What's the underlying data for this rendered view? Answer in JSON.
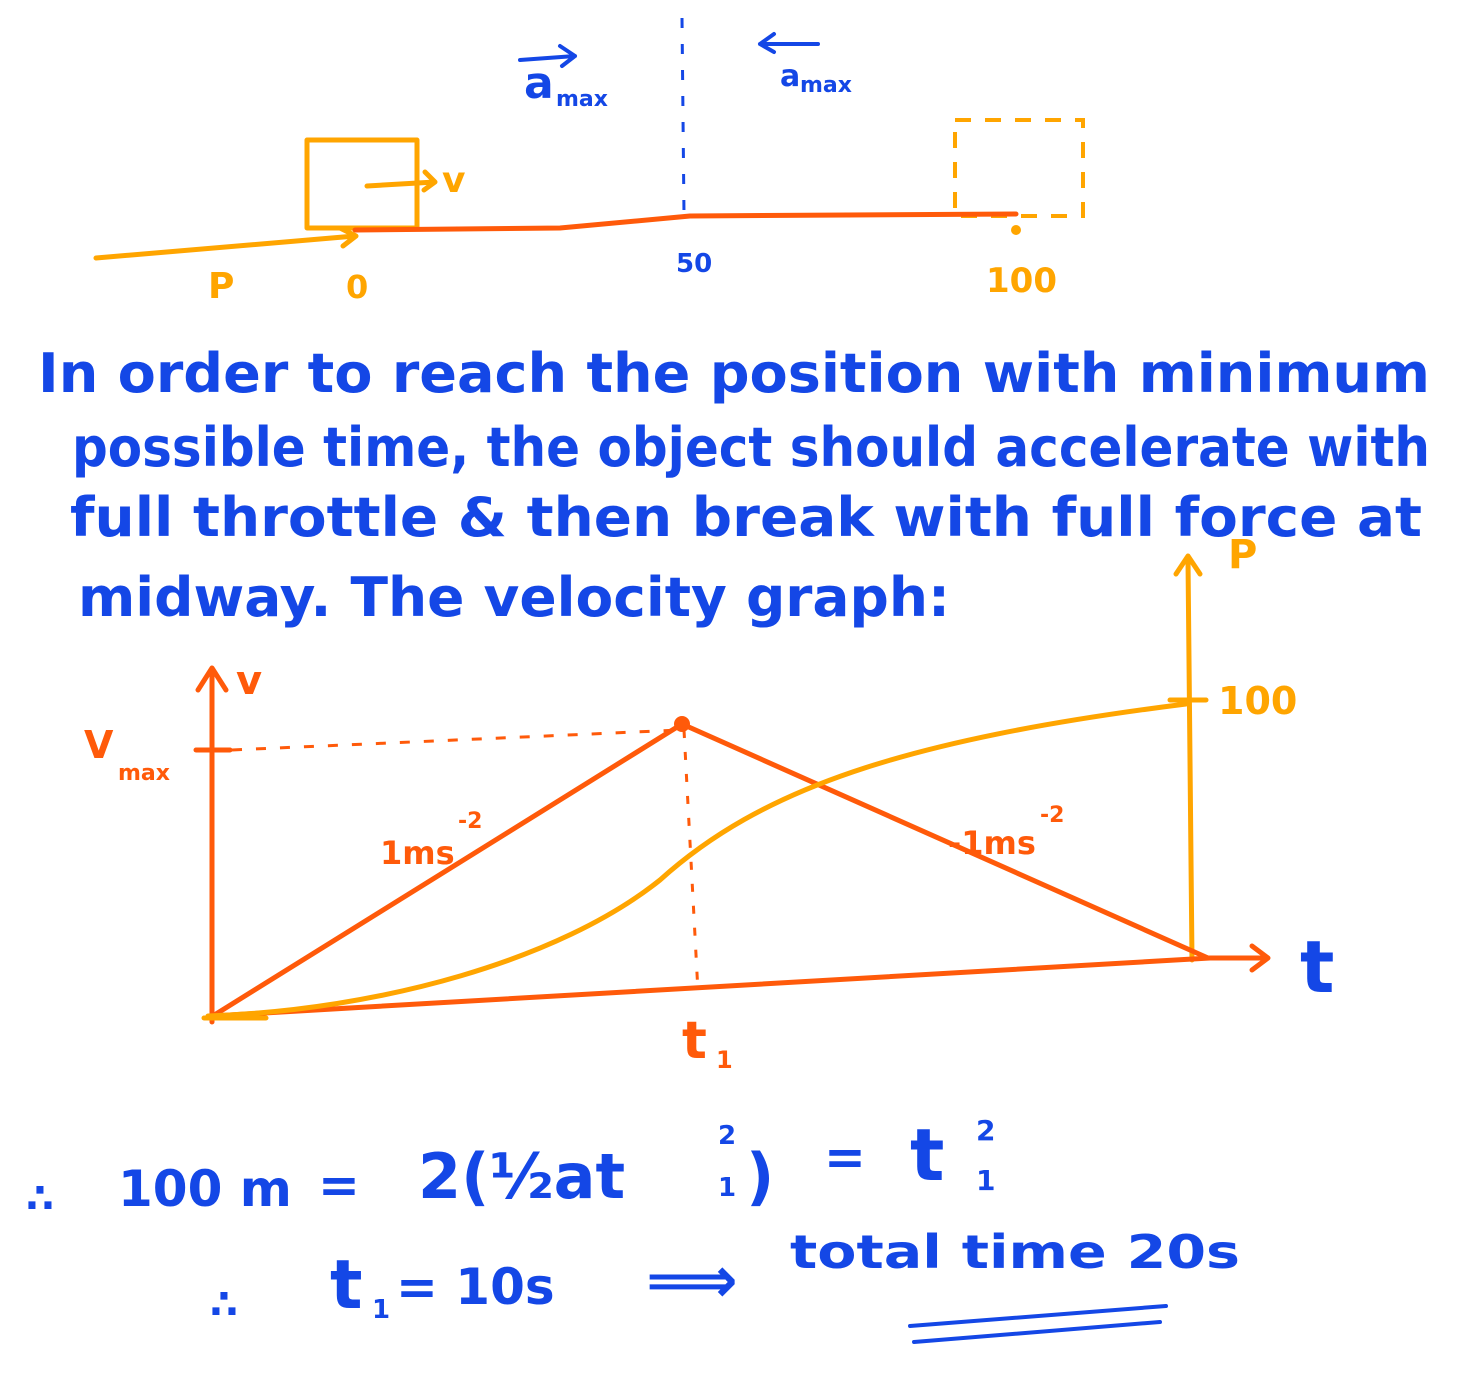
{
  "colors": {
    "blue": "#1447e6",
    "orange": "#ff5a0a",
    "amber": "#ffa500"
  },
  "top_diagram": {
    "left_accel_label": "a",
    "left_accel_sub": "max",
    "right_accel_label": "a",
    "right_accel_sub": "max",
    "velocity_label": "v",
    "p_label": "P",
    "start_label": "0",
    "mid_label": "50",
    "end_label": "100"
  },
  "paragraph": {
    "line1": "In order to reach the position with minimum",
    "line2": "possible time, the object should accelerate with",
    "line3": "full throttle & then break with full force at",
    "line4": "midway. The velocity graph:"
  },
  "graph": {
    "v_axis_label": "v",
    "p_axis_label": "P",
    "vmax_label": "V",
    "vmax_sub": "max",
    "p_tick_label": "100",
    "t_axis_label": "t",
    "t1_label": "t",
    "t1_sub": "1",
    "accel_label": "1ms",
    "accel_exp": "-2",
    "decel_label": "-1ms",
    "decel_exp": "-2"
  },
  "equations": {
    "eq1_therefore": "∴",
    "eq1_lhs": "100 m",
    "eq1_eq1": "=",
    "eq1_mid": "2(½at",
    "eq1_mid_sup": "2",
    "eq1_mid_sub": "1",
    "eq1_mid_close": ")",
    "eq1_eq2": "=",
    "eq1_rhs": "t",
    "eq1_rhs_sup": "2",
    "eq1_rhs_sub": "1",
    "eq2_therefore": "∴",
    "eq2_lhs": "t",
    "eq2_lhs_sub": "1",
    "eq2_rest": "= 10s",
    "eq2_arrow": "⟹",
    "eq2_result": "total time 20s"
  }
}
